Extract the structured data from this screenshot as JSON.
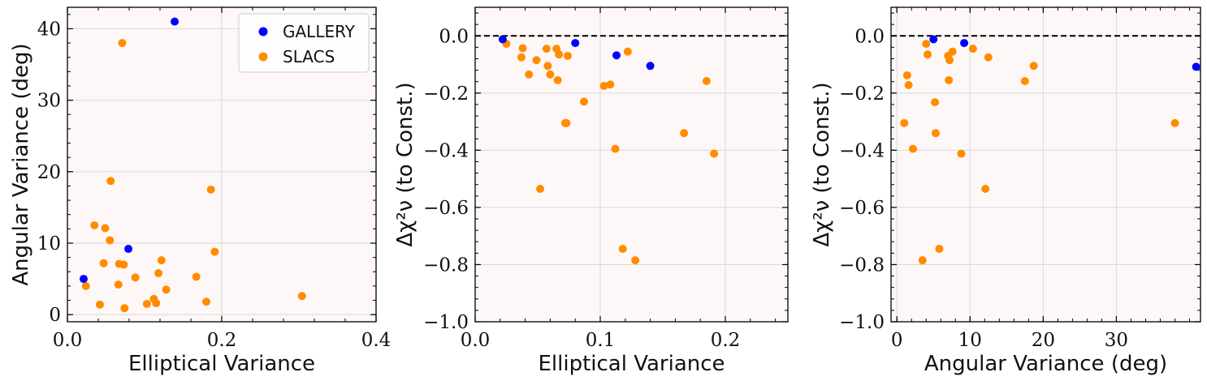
{
  "colors": {
    "gallery": "#0000ff",
    "slacs": "#ff8c00",
    "plot_bg": "#fdf8f7",
    "grid": "#d9d9d9"
  },
  "legend": {
    "placement": "top-right",
    "entries": [
      "GALLERY",
      "SLACS"
    ]
  },
  "chart_data": [
    {
      "type": "scatter",
      "xlabel": "Elliptical Variance",
      "ylabel": "Angular Variance (deg)",
      "xlim": [
        0.0,
        0.4
      ],
      "ylim": [
        -1,
        43
      ],
      "xticks": [
        0.0,
        0.2,
        0.4
      ],
      "xtick_labels": [
        "0.0",
        "0.2",
        "0.4"
      ],
      "yticks": [
        0,
        10,
        20,
        30,
        40
      ],
      "ytick_labels": [
        "0",
        "10",
        "20",
        "30",
        "40"
      ],
      "grid": true,
      "zero_line": false,
      "series": [
        {
          "name": "GALLERY",
          "color": "#0000ff",
          "points": [
            [
              0.021,
              5.0
            ],
            [
              0.079,
              9.2
            ],
            [
              0.139,
              41.0
            ]
          ]
        },
        {
          "name": "SLACS",
          "color": "#ff8c00",
          "points": [
            [
              0.024,
              4.0
            ],
            [
              0.035,
              12.5
            ],
            [
              0.042,
              1.4
            ],
            [
              0.047,
              7.2
            ],
            [
              0.049,
              12.1
            ],
            [
              0.055,
              10.4
            ],
            [
              0.056,
              18.7
            ],
            [
              0.066,
              4.2
            ],
            [
              0.067,
              7.1
            ],
            [
              0.071,
              38.0
            ],
            [
              0.073,
              7.0
            ],
            [
              0.074,
              0.9
            ],
            [
              0.088,
              5.2
            ],
            [
              0.103,
              1.5
            ],
            [
              0.112,
              2.2
            ],
            [
              0.115,
              1.6
            ],
            [
              0.118,
              5.8
            ],
            [
              0.122,
              7.6
            ],
            [
              0.128,
              3.5
            ],
            [
              0.167,
              5.3
            ],
            [
              0.18,
              1.8
            ],
            [
              0.186,
              17.5
            ],
            [
              0.191,
              8.8
            ],
            [
              0.304,
              2.6
            ]
          ]
        }
      ]
    },
    {
      "type": "scatter",
      "xlabel": "Elliptical Variance",
      "ylabel": "Δχ²ν (to Const.)",
      "xlim": [
        0.0,
        0.25
      ],
      "ylim": [
        -1.0,
        0.1
      ],
      "xticks": [
        0.0,
        0.1,
        0.2
      ],
      "xtick_labels": [
        "0.0",
        "0.1",
        "0.2"
      ],
      "yticks": [
        -1.0,
        -0.8,
        -0.6,
        -0.4,
        -0.2,
        0.0
      ],
      "ytick_labels": [
        "−1.0",
        "−0.8",
        "−0.6",
        "−0.4",
        "−0.2",
        "0.0"
      ],
      "grid": true,
      "zero_line": true,
      "series": [
        {
          "name": "GALLERY",
          "color": "#0000ff",
          "points": [
            [
              0.022,
              -0.012
            ],
            [
              0.08,
              -0.025
            ],
            [
              0.113,
              -0.068
            ],
            [
              0.14,
              -0.105
            ]
          ]
        },
        {
          "name": "SLACS",
          "color": "#ff8c00",
          "points": [
            [
              0.025,
              -0.028
            ],
            [
              0.037,
              -0.075
            ],
            [
              0.038,
              -0.043
            ],
            [
              0.043,
              -0.135
            ],
            [
              0.049,
              -0.085
            ],
            [
              0.052,
              -0.535
            ],
            [
              0.057,
              -0.045
            ],
            [
              0.058,
              -0.105
            ],
            [
              0.06,
              -0.135
            ],
            [
              0.065,
              -0.045
            ],
            [
              0.066,
              -0.155
            ],
            [
              0.067,
              -0.065
            ],
            [
              0.072,
              -0.305
            ],
            [
              0.073,
              -0.305
            ],
            [
              0.074,
              -0.07
            ],
            [
              0.087,
              -0.23
            ],
            [
              0.103,
              -0.175
            ],
            [
              0.108,
              -0.17
            ],
            [
              0.112,
              -0.395
            ],
            [
              0.118,
              -0.745
            ],
            [
              0.122,
              -0.055
            ],
            [
              0.128,
              -0.785
            ],
            [
              0.167,
              -0.34
            ],
            [
              0.185,
              -0.158
            ],
            [
              0.191,
              -0.412
            ]
          ]
        }
      ]
    },
    {
      "type": "scatter",
      "xlabel": "Angular Variance (deg)",
      "ylabel": "Δχ²ν (to Const.)",
      "xlim": [
        -0.8,
        41.5
      ],
      "ylim": [
        -1.0,
        0.1
      ],
      "xticks": [
        0,
        10,
        20,
        30
      ],
      "xtick_labels": [
        "0",
        "10",
        "20",
        "30"
      ],
      "yticks": [
        -1.0,
        -0.8,
        -0.6,
        -0.4,
        -0.2,
        0.0
      ],
      "ytick_labels": [
        "−1.0",
        "−0.8",
        "−0.6",
        "−0.4",
        "−0.2",
        "0.0"
      ],
      "grid": true,
      "zero_line": true,
      "series": [
        {
          "name": "GALLERY",
          "color": "#0000ff",
          "points": [
            [
              5.0,
              -0.012
            ],
            [
              9.2,
              -0.025
            ],
            [
              40.9,
              -0.108
            ]
          ]
        },
        {
          "name": "SLACS",
          "color": "#ff8c00",
          "points": [
            [
              1.0,
              -0.305
            ],
            [
              1.4,
              -0.138
            ],
            [
              1.6,
              -0.172
            ],
            [
              2.2,
              -0.395
            ],
            [
              3.5,
              -0.785
            ],
            [
              4.0,
              -0.028
            ],
            [
              4.2,
              -0.065
            ],
            [
              5.2,
              -0.232
            ],
            [
              5.3,
              -0.34
            ],
            [
              5.8,
              -0.745
            ],
            [
              7.0,
              -0.07
            ],
            [
              7.1,
              -0.155
            ],
            [
              7.2,
              -0.085
            ],
            [
              7.6,
              -0.055
            ],
            [
              8.8,
              -0.412
            ],
            [
              10.4,
              -0.045
            ],
            [
              12.1,
              -0.535
            ],
            [
              12.5,
              -0.075
            ],
            [
              17.5,
              -0.158
            ],
            [
              18.7,
              -0.105
            ],
            [
              38.0,
              -0.305
            ]
          ]
        }
      ]
    }
  ]
}
